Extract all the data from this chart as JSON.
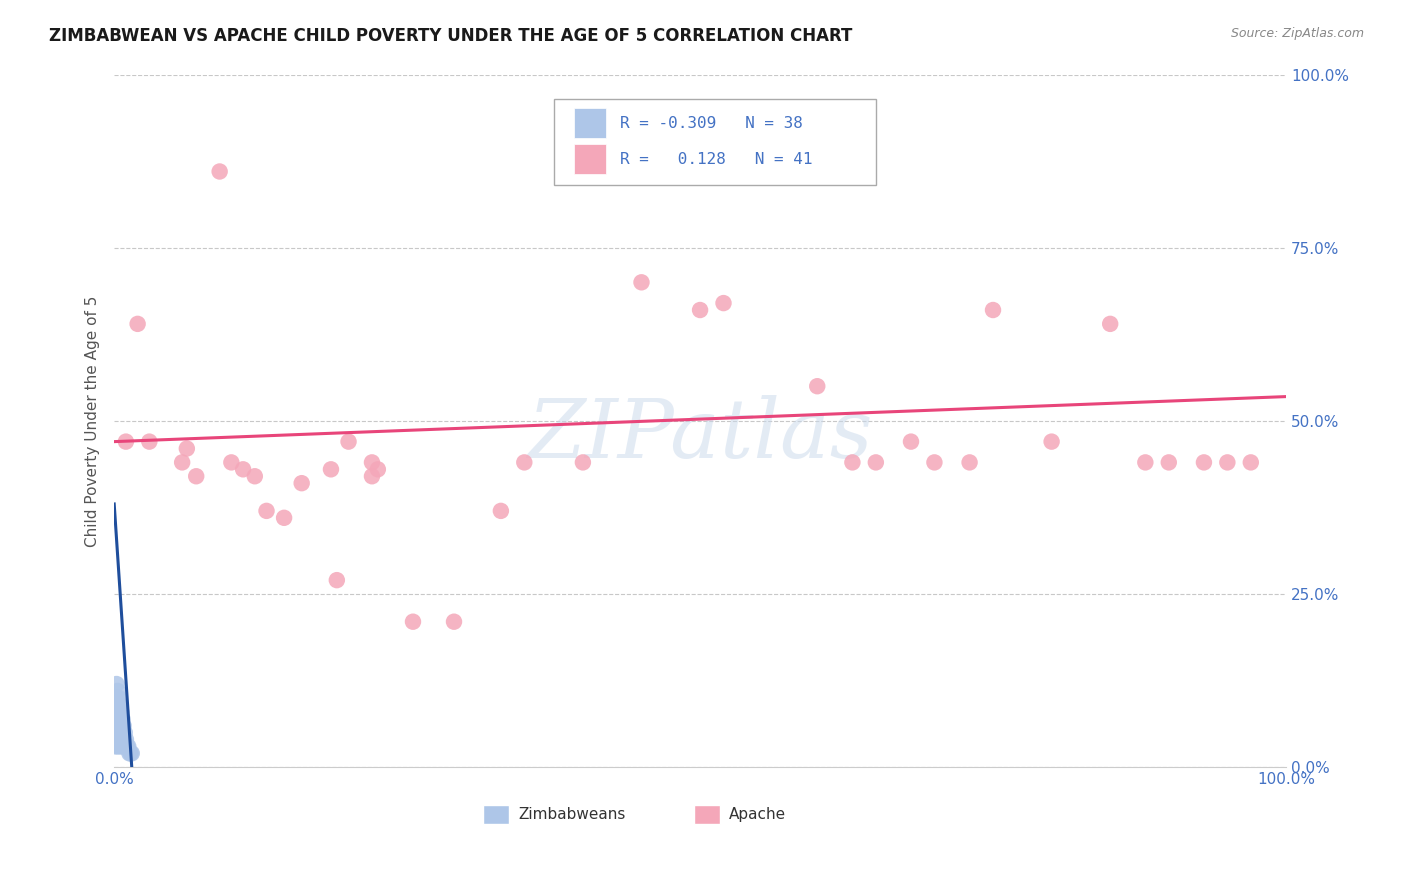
{
  "title": "ZIMBABWEAN VS APACHE CHILD POVERTY UNDER THE AGE OF 5 CORRELATION CHART",
  "source": "Source: ZipAtlas.com",
  "ylabel": "Child Poverty Under the Age of 5",
  "xlim": [
    0,
    1
  ],
  "ylim": [
    0,
    1
  ],
  "ytick_vals": [
    0.0,
    0.25,
    0.5,
    0.75,
    1.0
  ],
  "ytick_labels": [
    "0.0%",
    "25.0%",
    "50.0%",
    "75.0%",
    "100.0%"
  ],
  "xtick_vals": [
    0.0,
    1.0
  ],
  "xtick_labels": [
    "0.0%",
    "100.0%"
  ],
  "grid_color": "#c8c8c8",
  "background_color": "#ffffff",
  "watermark": "ZIPatlas",
  "legend_r_zimbabwean": "-0.309",
  "legend_n_zimbabwean": "38",
  "legend_r_apache": "0.128",
  "legend_n_apache": "41",
  "zimbabwean_color": "#aec6e8",
  "apache_color": "#f4a7b9",
  "zimbabwean_line_color": "#1f4e9c",
  "apache_line_color": "#e8457a",
  "title_color": "#1a1a1a",
  "title_fontsize": 12,
  "source_color": "#888888",
  "axis_label_color": "#555555",
  "tick_label_color": "#4472c4",
  "legend_r_color": "#4472c4",
  "zim_x": [
    0.001,
    0.001,
    0.001,
    0.002,
    0.002,
    0.002,
    0.002,
    0.002,
    0.003,
    0.003,
    0.003,
    0.003,
    0.003,
    0.004,
    0.004,
    0.004,
    0.004,
    0.005,
    0.005,
    0.005,
    0.005,
    0.006,
    0.006,
    0.006,
    0.007,
    0.007,
    0.007,
    0.008,
    0.008,
    0.009,
    0.009,
    0.01,
    0.01,
    0.011,
    0.012,
    0.013,
    0.014,
    0.015
  ],
  "zim_y": [
    0.03,
    0.05,
    0.07,
    0.04,
    0.06,
    0.08,
    0.1,
    0.12,
    0.03,
    0.05,
    0.07,
    0.09,
    0.11,
    0.04,
    0.06,
    0.08,
    0.1,
    0.03,
    0.05,
    0.07,
    0.09,
    0.04,
    0.06,
    0.08,
    0.03,
    0.05,
    0.07,
    0.04,
    0.06,
    0.03,
    0.05,
    0.03,
    0.04,
    0.03,
    0.03,
    0.02,
    0.02,
    0.02
  ],
  "ap_x": [
    0.01,
    0.02,
    0.03,
    0.058,
    0.062,
    0.07,
    0.09,
    0.1,
    0.11,
    0.12,
    0.13,
    0.145,
    0.16,
    0.19,
    0.2,
    0.22,
    0.225,
    0.185,
    0.255,
    0.22,
    0.29,
    0.33,
    0.35,
    0.4,
    0.45,
    0.5,
    0.52,
    0.6,
    0.63,
    0.65,
    0.68,
    0.7,
    0.73,
    0.75,
    0.8,
    0.85,
    0.88,
    0.9,
    0.93,
    0.95,
    0.97
  ],
  "ap_y": [
    0.47,
    0.64,
    0.47,
    0.44,
    0.46,
    0.42,
    0.86,
    0.44,
    0.43,
    0.42,
    0.37,
    0.36,
    0.41,
    0.27,
    0.47,
    0.44,
    0.43,
    0.43,
    0.21,
    0.42,
    0.21,
    0.37,
    0.44,
    0.44,
    0.7,
    0.66,
    0.67,
    0.55,
    0.44,
    0.44,
    0.47,
    0.44,
    0.44,
    0.66,
    0.47,
    0.64,
    0.44,
    0.44,
    0.44,
    0.44,
    0.44
  ]
}
